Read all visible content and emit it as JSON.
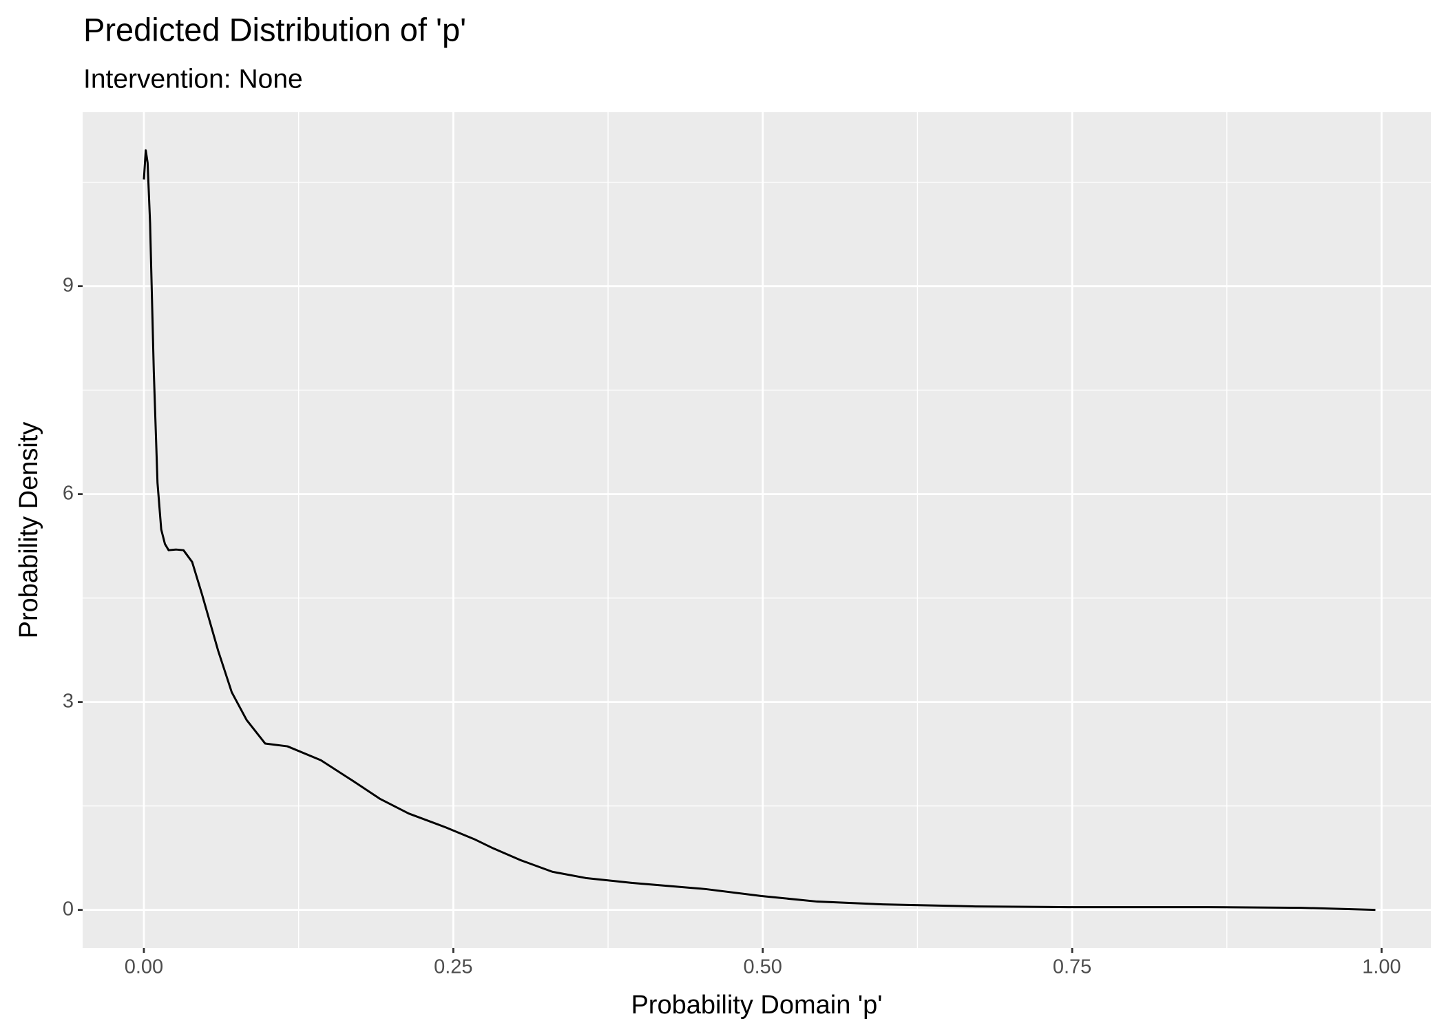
{
  "chart_data": {
    "type": "line",
    "title": "Predicted Distribution of 'p'",
    "subtitle": "Intervention: None",
    "x_label": "Probability Domain 'p'",
    "y_label": "Probability Density",
    "x": [
      0,
      0.0015,
      0.003,
      0.005,
      0.008,
      0.011,
      0.014,
      0.017,
      0.02,
      0.026,
      0.032,
      0.039,
      0.047,
      0.06,
      0.071,
      0.083,
      0.098,
      0.116,
      0.143,
      0.169,
      0.191,
      0.214,
      0.244,
      0.267,
      0.282,
      0.304,
      0.33,
      0.357,
      0.394,
      0.454,
      0.499,
      0.544,
      0.597,
      0.672,
      0.747,
      0.86,
      0.935,
      0.995
    ],
    "values": [
      10.54,
      10.96,
      10.78,
      9.91,
      7.77,
      6.16,
      5.49,
      5.28,
      5.19,
      5.2,
      5.19,
      5.02,
      4.55,
      3.74,
      3.14,
      2.74,
      2.4,
      2.36,
      2.16,
      1.86,
      1.6,
      1.39,
      1.19,
      1.02,
      0.89,
      0.72,
      0.55,
      0.46,
      0.39,
      0.3,
      0.2,
      0.12,
      0.08,
      0.05,
      0.04,
      0.04,
      0.03,
      0
    ],
    "color": "#000000",
    "xlim": [
      -0.0495,
      1.0398
    ],
    "ylim": [
      -0.55,
      11.51
    ],
    "xticks": [
      {
        "value": 0,
        "label": "0.00"
      },
      {
        "value": 0.25,
        "label": "0.25"
      },
      {
        "value": 0.5,
        "label": "0.50"
      },
      {
        "value": 0.75,
        "label": "0.75"
      },
      {
        "value": 1,
        "label": "1.00"
      }
    ],
    "yticks": [
      0,
      3,
      6,
      9
    ],
    "x_minor_ticks": [
      0.125,
      0.375,
      0.625,
      0.875
    ],
    "y_minor_ticks": [
      1.5,
      4.5,
      7.5,
      10.5
    ],
    "grid": true
  }
}
